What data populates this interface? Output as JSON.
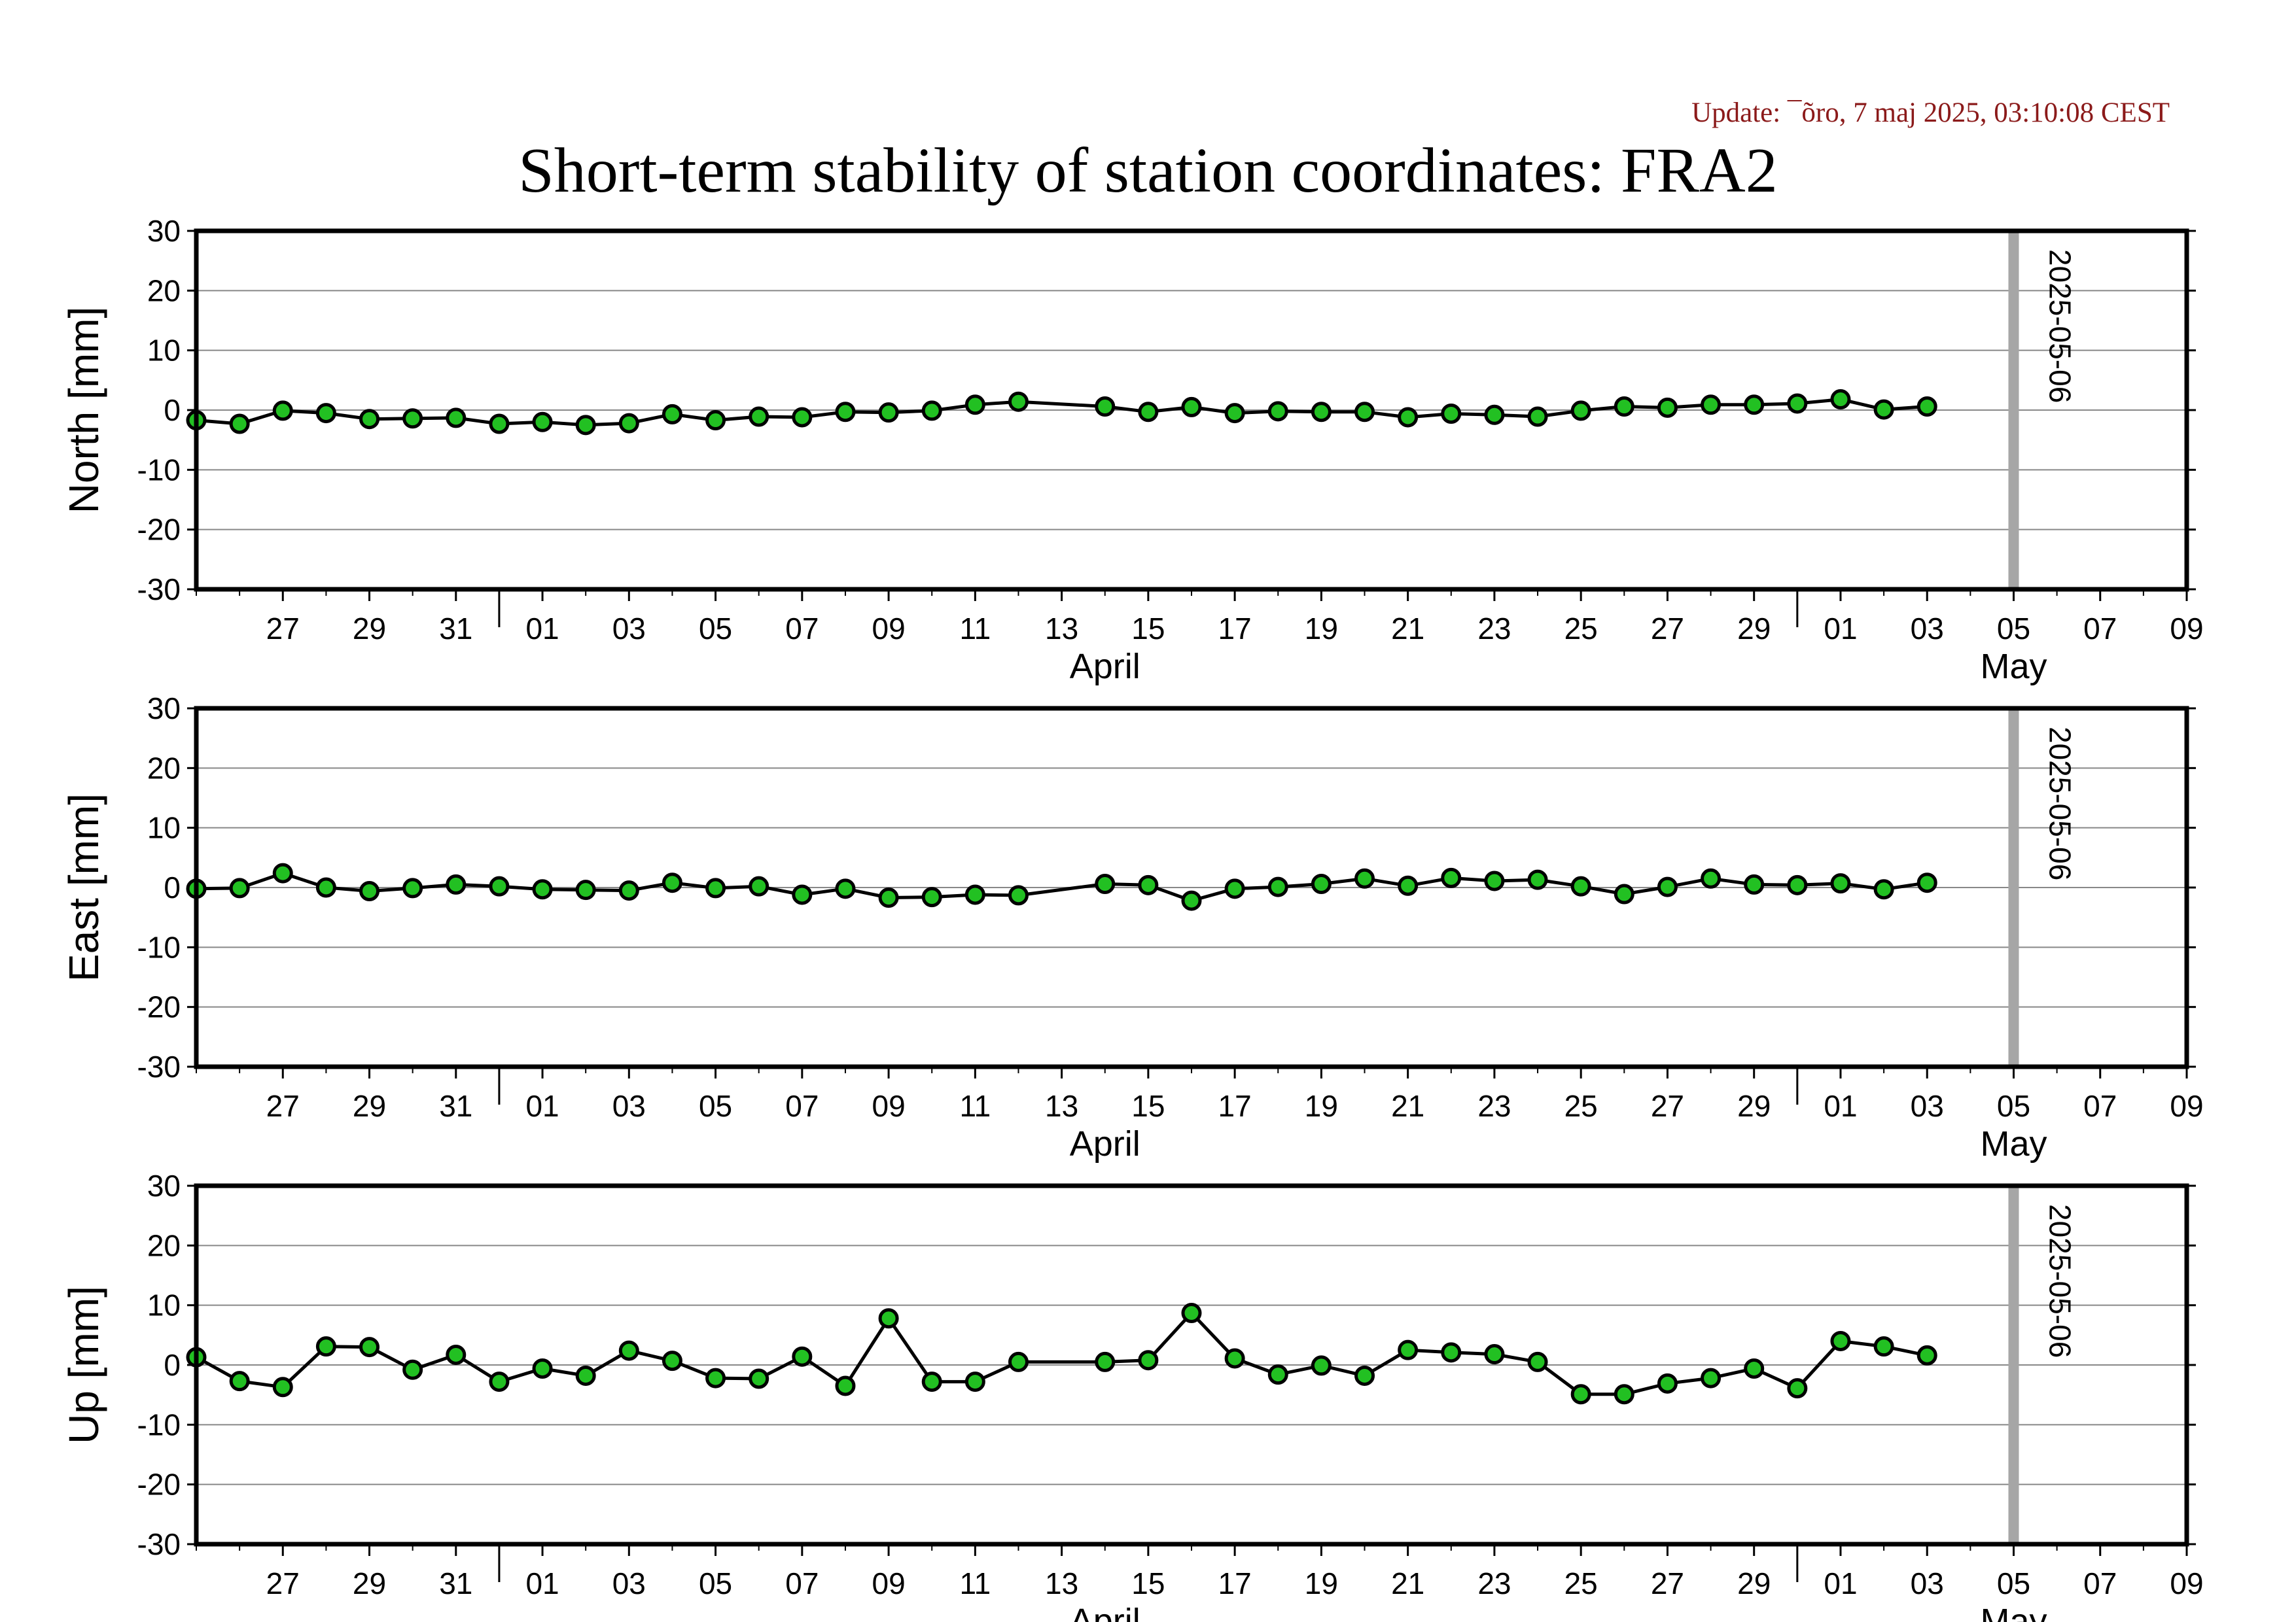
{
  "update_text": "Update: ¯õro, 7 maj 2025, 03:10:08 CEST",
  "title": "Short-term stability of station coordinates: FRA2",
  "colors": {
    "marker_fill": "#22c022",
    "marker_edge": "#000000",
    "line": "#000000",
    "today_line": "#a6a6a6",
    "grid": "#888888",
    "update_text": "#8b1a1a"
  },
  "chart_data": [
    {
      "type": "line",
      "ylabel": "North [mm]",
      "ylim": [
        -30,
        30
      ],
      "yticks": [
        -30,
        -20,
        -10,
        0,
        10,
        20,
        30
      ],
      "grid": true,
      "xlim": [
        "2025-03-25",
        "2025-05-10"
      ],
      "xtick_labels": [
        "27",
        "29",
        "31",
        "01",
        "03",
        "05",
        "07",
        "09",
        "11",
        "13",
        "15",
        "17",
        "19",
        "21",
        "23",
        "25",
        "27",
        "29",
        "01",
        "03",
        "05",
        "07",
        "09"
      ],
      "month_labels": [
        "April",
        "May"
      ],
      "marker_label": "2025-05-06",
      "series": [
        {
          "x": [
            "2025-03-25",
            "2025-03-26",
            "2025-03-27",
            "2025-03-28",
            "2025-03-29",
            "2025-03-30",
            "2025-03-31",
            "2025-04-01",
            "2025-04-02",
            "2025-04-03",
            "2025-04-04",
            "2025-04-05",
            "2025-04-06",
            "2025-04-07",
            "2025-04-08",
            "2025-04-09",
            "2025-04-10",
            "2025-04-11",
            "2025-04-12",
            "2025-04-13",
            "2025-04-15",
            "2025-04-16",
            "2025-04-17",
            "2025-04-18",
            "2025-04-19",
            "2025-04-20",
            "2025-04-21",
            "2025-04-22",
            "2025-04-23",
            "2025-04-24",
            "2025-04-25",
            "2025-04-26",
            "2025-04-27",
            "2025-04-28",
            "2025-04-29",
            "2025-04-30",
            "2025-05-01",
            "2025-05-02",
            "2025-05-03",
            "2025-05-04"
          ],
          "y": [
            -1.7,
            -2.3,
            -0.1,
            -0.5,
            -1.5,
            -1.4,
            -1.3,
            -2.3,
            -2.0,
            -2.5,
            -2.2,
            -0.7,
            -1.7,
            -1.1,
            -1.2,
            -0.3,
            -0.4,
            -0.1,
            0.9,
            1.4,
            0.6,
            -0.3,
            0.5,
            -0.5,
            -0.2,
            -0.3,
            -0.3,
            -1.2,
            -0.6,
            -0.8,
            -1.1,
            -0.1,
            0.6,
            0.4,
            0.9,
            0.9,
            1.1,
            1.8,
            0.1,
            0.6
          ]
        }
      ]
    },
    {
      "type": "line",
      "ylabel": "East [mm]",
      "ylim": [
        -30,
        30
      ],
      "yticks": [
        -30,
        -20,
        -10,
        0,
        10,
        20,
        30
      ],
      "grid": true,
      "xlim": [
        "2025-03-25",
        "2025-05-10"
      ],
      "xtick_labels": [
        "27",
        "29",
        "31",
        "01",
        "03",
        "05",
        "07",
        "09",
        "11",
        "13",
        "15",
        "17",
        "19",
        "21",
        "23",
        "25",
        "27",
        "29",
        "01",
        "03",
        "05",
        "07",
        "09"
      ],
      "month_labels": [
        "April",
        "May"
      ],
      "marker_label": "2025-05-06",
      "series": [
        {
          "x": [
            "2025-03-25",
            "2025-03-26",
            "2025-03-27",
            "2025-03-28",
            "2025-03-29",
            "2025-03-30",
            "2025-03-31",
            "2025-04-01",
            "2025-04-02",
            "2025-04-03",
            "2025-04-04",
            "2025-04-05",
            "2025-04-06",
            "2025-04-07",
            "2025-04-08",
            "2025-04-09",
            "2025-04-10",
            "2025-04-11",
            "2025-04-12",
            "2025-04-13",
            "2025-04-15",
            "2025-04-16",
            "2025-04-17",
            "2025-04-18",
            "2025-04-19",
            "2025-04-20",
            "2025-04-21",
            "2025-04-22",
            "2025-04-23",
            "2025-04-24",
            "2025-04-25",
            "2025-04-26",
            "2025-04-27",
            "2025-04-28",
            "2025-04-29",
            "2025-04-30",
            "2025-05-01",
            "2025-05-02",
            "2025-05-03",
            "2025-05-04"
          ],
          "y": [
            -0.2,
            -0.1,
            2.4,
            0.0,
            -0.6,
            -0.1,
            0.5,
            0.2,
            -0.3,
            -0.4,
            -0.5,
            0.8,
            -0.1,
            0.2,
            -1.2,
            -0.2,
            -1.7,
            -1.6,
            -1.2,
            -1.3,
            0.6,
            0.4,
            -2.2,
            -0.2,
            0.1,
            0.6,
            1.5,
            0.3,
            1.6,
            1.1,
            1.3,
            0.2,
            -1.1,
            0.1,
            1.5,
            0.5,
            0.4,
            0.7,
            -0.3,
            0.8
          ]
        }
      ]
    },
    {
      "type": "line",
      "ylabel": "Up [mm]",
      "ylim": [
        -30,
        30
      ],
      "yticks": [
        -30,
        -20,
        -10,
        0,
        10,
        20,
        30
      ],
      "grid": true,
      "xlim": [
        "2025-03-25",
        "2025-05-10"
      ],
      "xtick_labels": [
        "27",
        "29",
        "31",
        "01",
        "03",
        "05",
        "07",
        "09",
        "11",
        "13",
        "15",
        "17",
        "19",
        "21",
        "23",
        "25",
        "27",
        "29",
        "01",
        "03",
        "05",
        "07",
        "09"
      ],
      "month_labels": [
        "April",
        "May"
      ],
      "marker_label": "2025-05-06",
      "series": [
        {
          "x": [
            "2025-03-25",
            "2025-03-26",
            "2025-03-27",
            "2025-03-28",
            "2025-03-29",
            "2025-03-30",
            "2025-03-31",
            "2025-04-01",
            "2025-04-02",
            "2025-04-03",
            "2025-04-04",
            "2025-04-05",
            "2025-04-06",
            "2025-04-07",
            "2025-04-08",
            "2025-04-09",
            "2025-04-10",
            "2025-04-11",
            "2025-04-12",
            "2025-04-13",
            "2025-04-15",
            "2025-04-16",
            "2025-04-17",
            "2025-04-18",
            "2025-04-19",
            "2025-04-20",
            "2025-04-21",
            "2025-04-22",
            "2025-04-23",
            "2025-04-24",
            "2025-04-25",
            "2025-04-26",
            "2025-04-27",
            "2025-04-28",
            "2025-04-29",
            "2025-04-30",
            "2025-05-01",
            "2025-05-02",
            "2025-05-03",
            "2025-05-04"
          ],
          "y": [
            1.3,
            -2.7,
            -3.7,
            3.1,
            3.0,
            -0.8,
            1.7,
            -2.8,
            -0.6,
            -1.8,
            2.4,
            0.7,
            -2.2,
            -2.3,
            1.4,
            -3.5,
            7.8,
            -2.8,
            -2.8,
            0.5,
            0.5,
            0.8,
            8.7,
            1.1,
            -1.6,
            -0.1,
            -1.8,
            2.5,
            2.1,
            1.8,
            0.5,
            -4.9,
            -4.9,
            -3.1,
            -2.2,
            -0.6,
            -3.9,
            4.0,
            3.1,
            1.6
          ]
        }
      ]
    }
  ]
}
